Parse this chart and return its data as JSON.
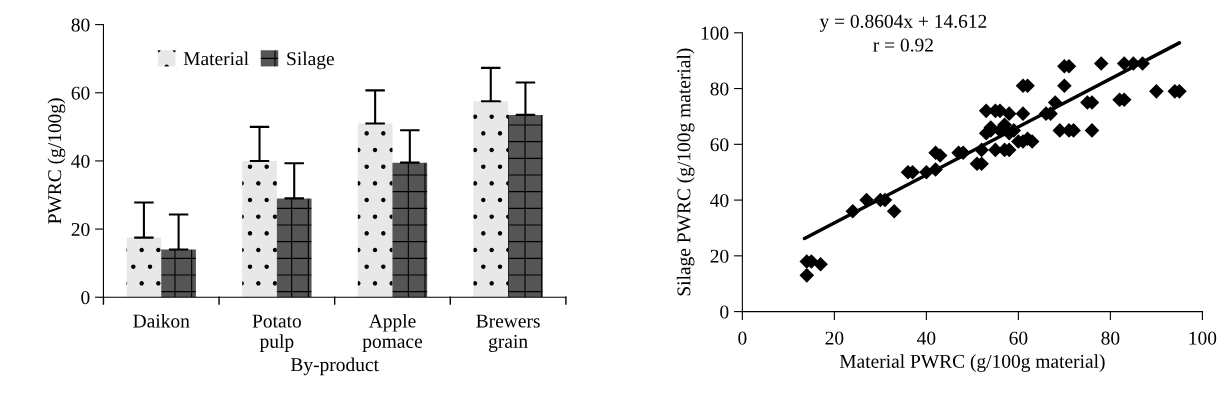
{
  "chart_data": [
    {
      "type": "bar",
      "ylabel": "PWRC (g/100g)",
      "xlabel": "By-product",
      "categories": [
        "Daikon",
        "Potato\npulp",
        "Apple\npomace",
        "Brewers\ngrain"
      ],
      "series": [
        {
          "name": "Material",
          "color": "#e8e8e8",
          "values": [
            17.5,
            40,
            51,
            57.5
          ],
          "errors": [
            [
              17.5,
              27.8
            ],
            [
              40,
              50
            ],
            [
              51,
              60.7
            ],
            [
              57.5,
              67.3
            ]
          ]
        },
        {
          "name": "Silage",
          "color": "#555555",
          "values": [
            14,
            29,
            39.5,
            53.5
          ],
          "errors": [
            [
              14,
              24.3
            ],
            [
              29,
              39.3
            ],
            [
              39.5,
              49
            ],
            [
              53.5,
              63
            ]
          ]
        }
      ],
      "ylim": [
        0,
        80
      ],
      "yticks": [
        0,
        20,
        40,
        60,
        80
      ],
      "legend": "top left",
      "grid": false
    },
    {
      "type": "scatter",
      "xlabel": "Material PWRC (g/100g material)",
      "ylabel": "Silage PWRC (g/100g material)",
      "annotations": [
        "y = 0.8604x + 14.612",
        "r = 0.92"
      ],
      "series": [
        {
          "type": "scatter",
          "color": "#000000",
          "marker": "diamond",
          "x": [
            14,
            15,
            14,
            17,
            24,
            27,
            30,
            31,
            33,
            36,
            37,
            40,
            42,
            42,
            43,
            47,
            48,
            51,
            52,
            52,
            53,
            53,
            54,
            55,
            56,
            55,
            57,
            58,
            56,
            57,
            58,
            58,
            59,
            60,
            61,
            62,
            61,
            61,
            62,
            66,
            67,
            68,
            69,
            70,
            70,
            71,
            71,
            72,
            75,
            76,
            76,
            78,
            82,
            83,
            83,
            85,
            87,
            90,
            95,
            94,
            54,
            63
          ],
          "values": [
            18,
            18,
            13,
            17,
            36,
            40,
            40,
            40,
            36,
            50,
            50,
            50,
            51,
            57,
            56,
            57,
            57,
            53,
            53,
            58,
            64,
            72,
            65,
            72,
            72,
            58,
            58,
            58,
            65,
            67,
            71,
            64,
            65,
            61,
            61,
            62,
            71,
            81,
            81,
            71,
            71,
            75,
            65,
            81,
            88,
            88,
            65,
            65,
            75,
            75,
            65,
            89,
            76,
            76,
            89,
            89,
            89,
            79,
            79,
            79,
            66,
            61
          ]
        },
        {
          "type": "line",
          "color": "#000000",
          "marker": "none",
          "line_style": "solid",
          "x": [
            13.5,
            95
          ],
          "values": [
            26.2,
            96.4
          ]
        }
      ],
      "xlim": [
        0,
        100
      ],
      "xticks": [
        0,
        20,
        40,
        60,
        80,
        100
      ],
      "ylim": [
        0,
        100
      ],
      "yticks": [
        0,
        20,
        40,
        60,
        80,
        100
      ],
      "grid": false,
      "legend": false
    }
  ]
}
